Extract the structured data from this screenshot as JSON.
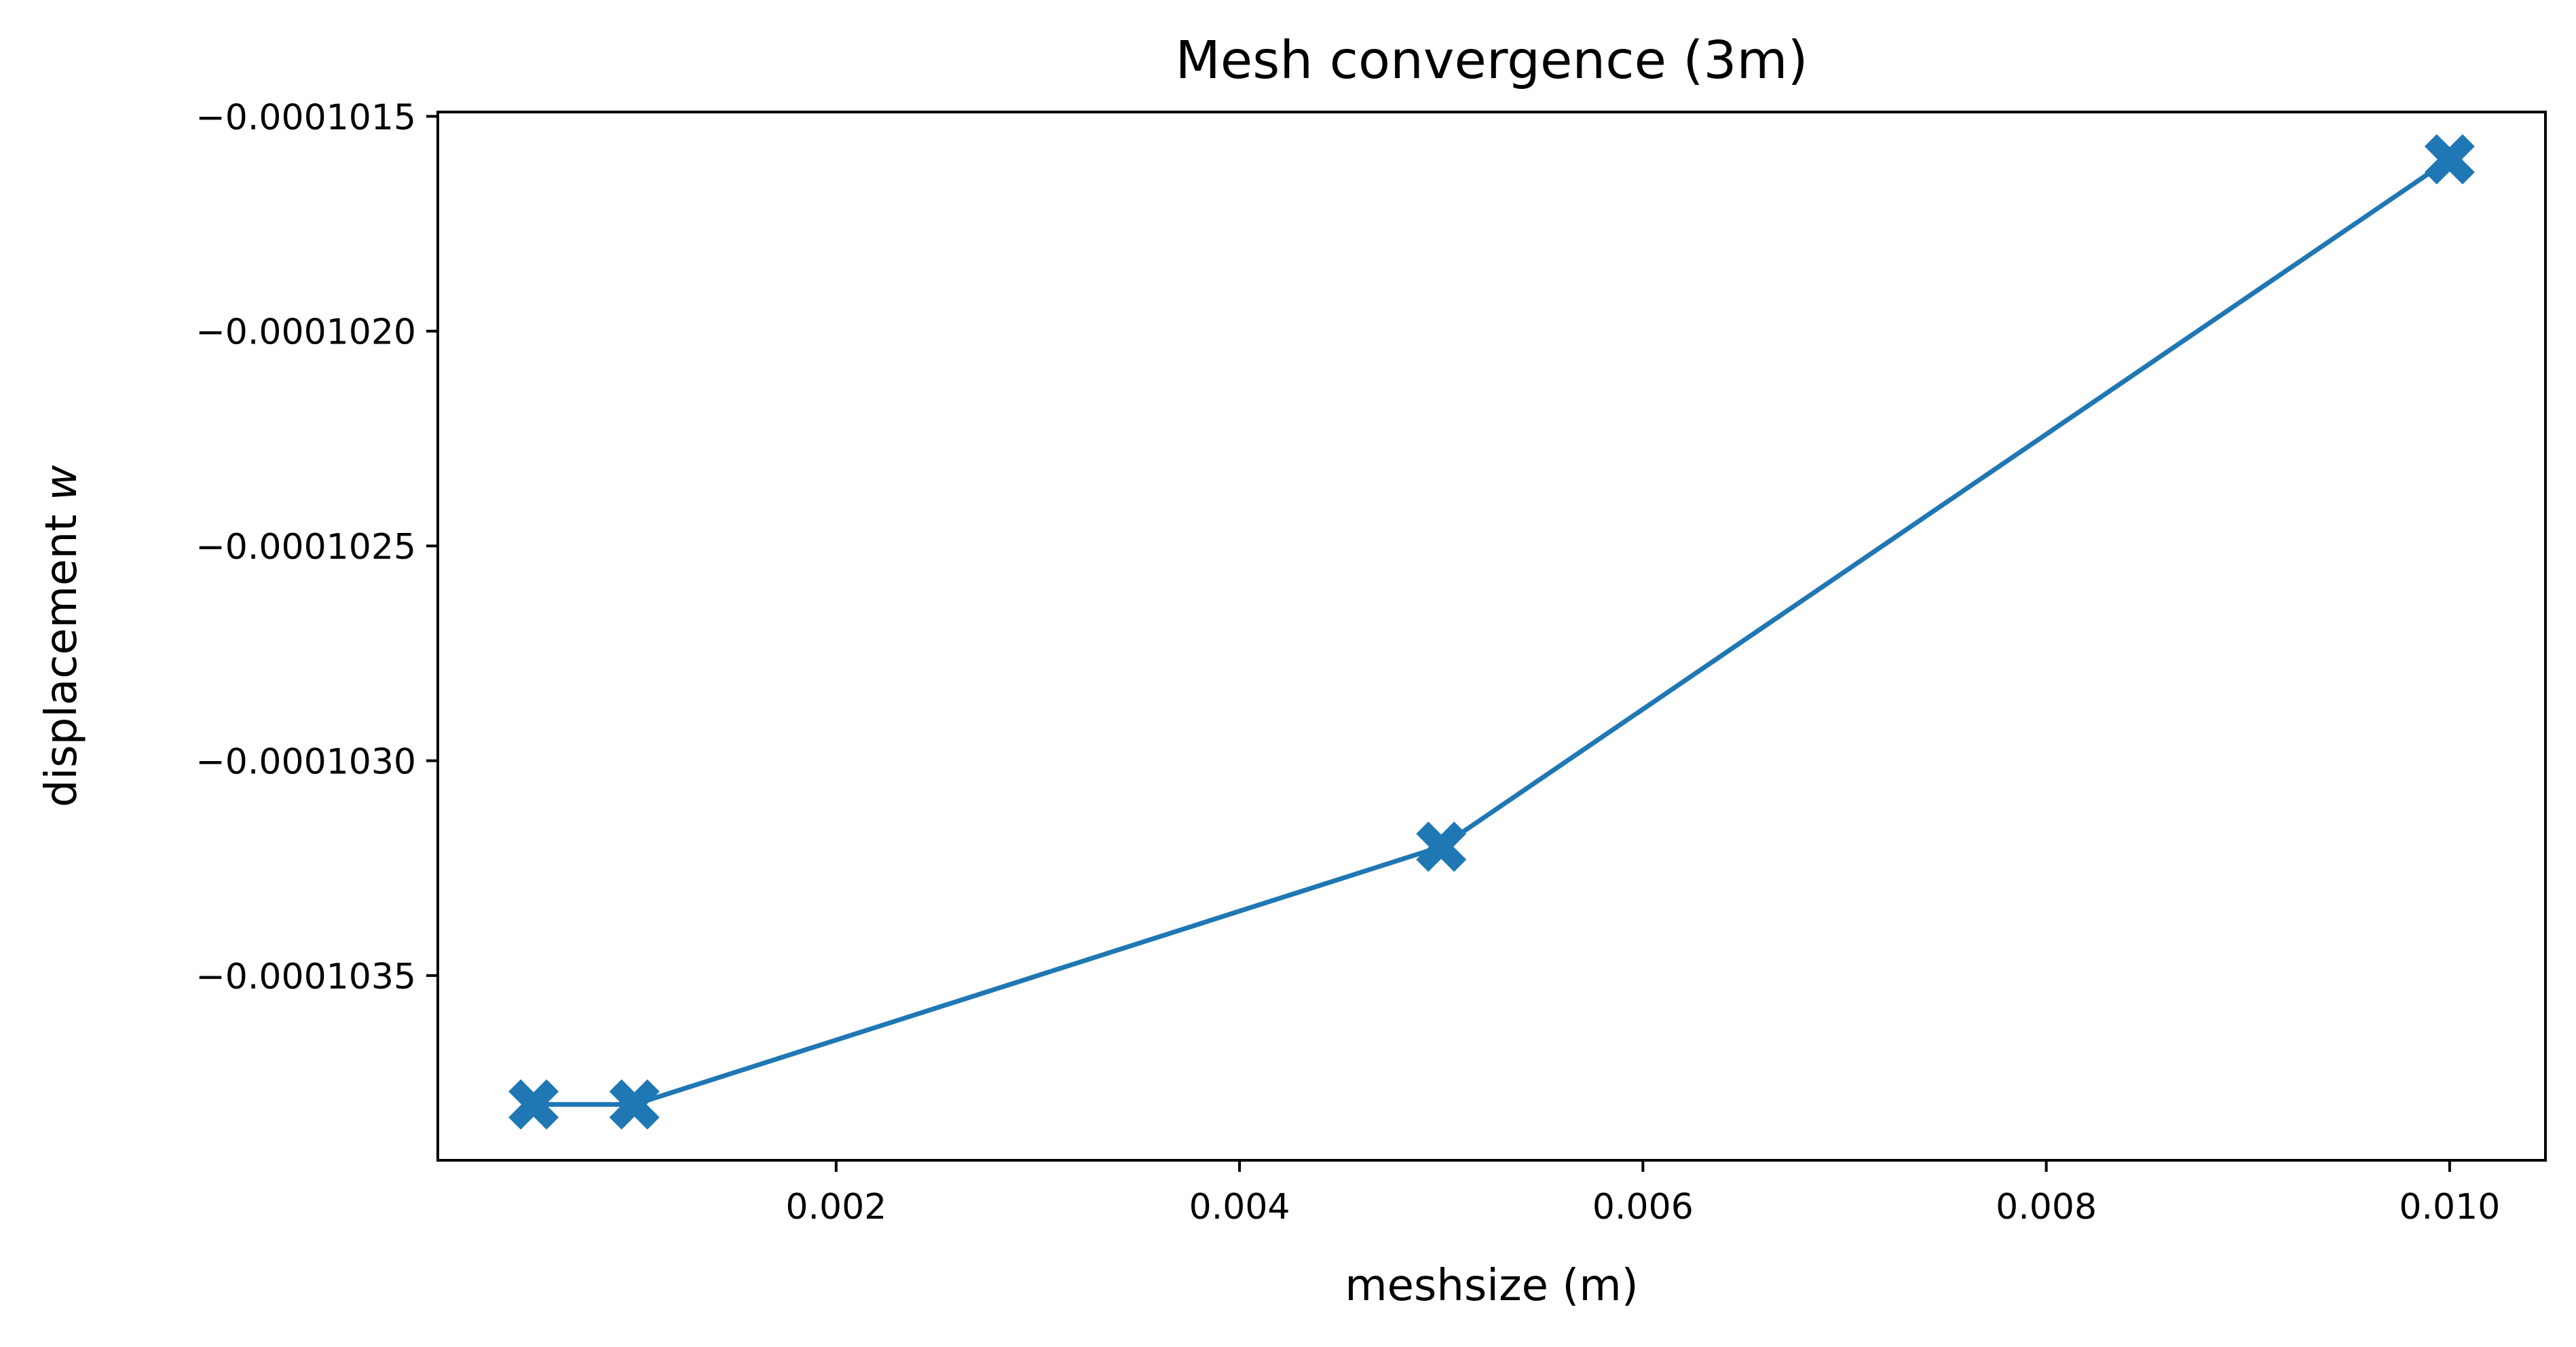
{
  "chart_data": {
    "type": "line",
    "title": "Mesh convergence (3m)",
    "xlabel": "meshsize (m)",
    "ylabel_text": "displacement ",
    "ylabel_var": "w",
    "x_ticks": [
      {
        "value": 0.002,
        "label": "0.002"
      },
      {
        "value": 0.004,
        "label": "0.004"
      },
      {
        "value": 0.006,
        "label": "0.006"
      },
      {
        "value": 0.008,
        "label": "0.008"
      },
      {
        "value": 0.01,
        "label": "0.010"
      }
    ],
    "y_ticks": [
      {
        "value": -0.0001015,
        "label": "−0.0001015"
      },
      {
        "value": -0.000102,
        "label": "−0.0001020"
      },
      {
        "value": -0.0001025,
        "label": "−0.0001025"
      },
      {
        "value": -0.000103,
        "label": "−0.0001030"
      },
      {
        "value": -0.0001035,
        "label": "−0.0001035"
      }
    ],
    "xlim": [
      2.5e-05,
      0.010475
    ],
    "ylim": [
      -0.00010393,
      -0.00010149
    ],
    "grid": false,
    "series": [
      {
        "color": "#1f77b4",
        "marker": "X",
        "x": [
          0.0005,
          0.001,
          0.005,
          0.01
        ],
        "y": [
          -0.0001038,
          -0.0001038,
          -0.0001032,
          -0.0001016
        ]
      }
    ]
  }
}
